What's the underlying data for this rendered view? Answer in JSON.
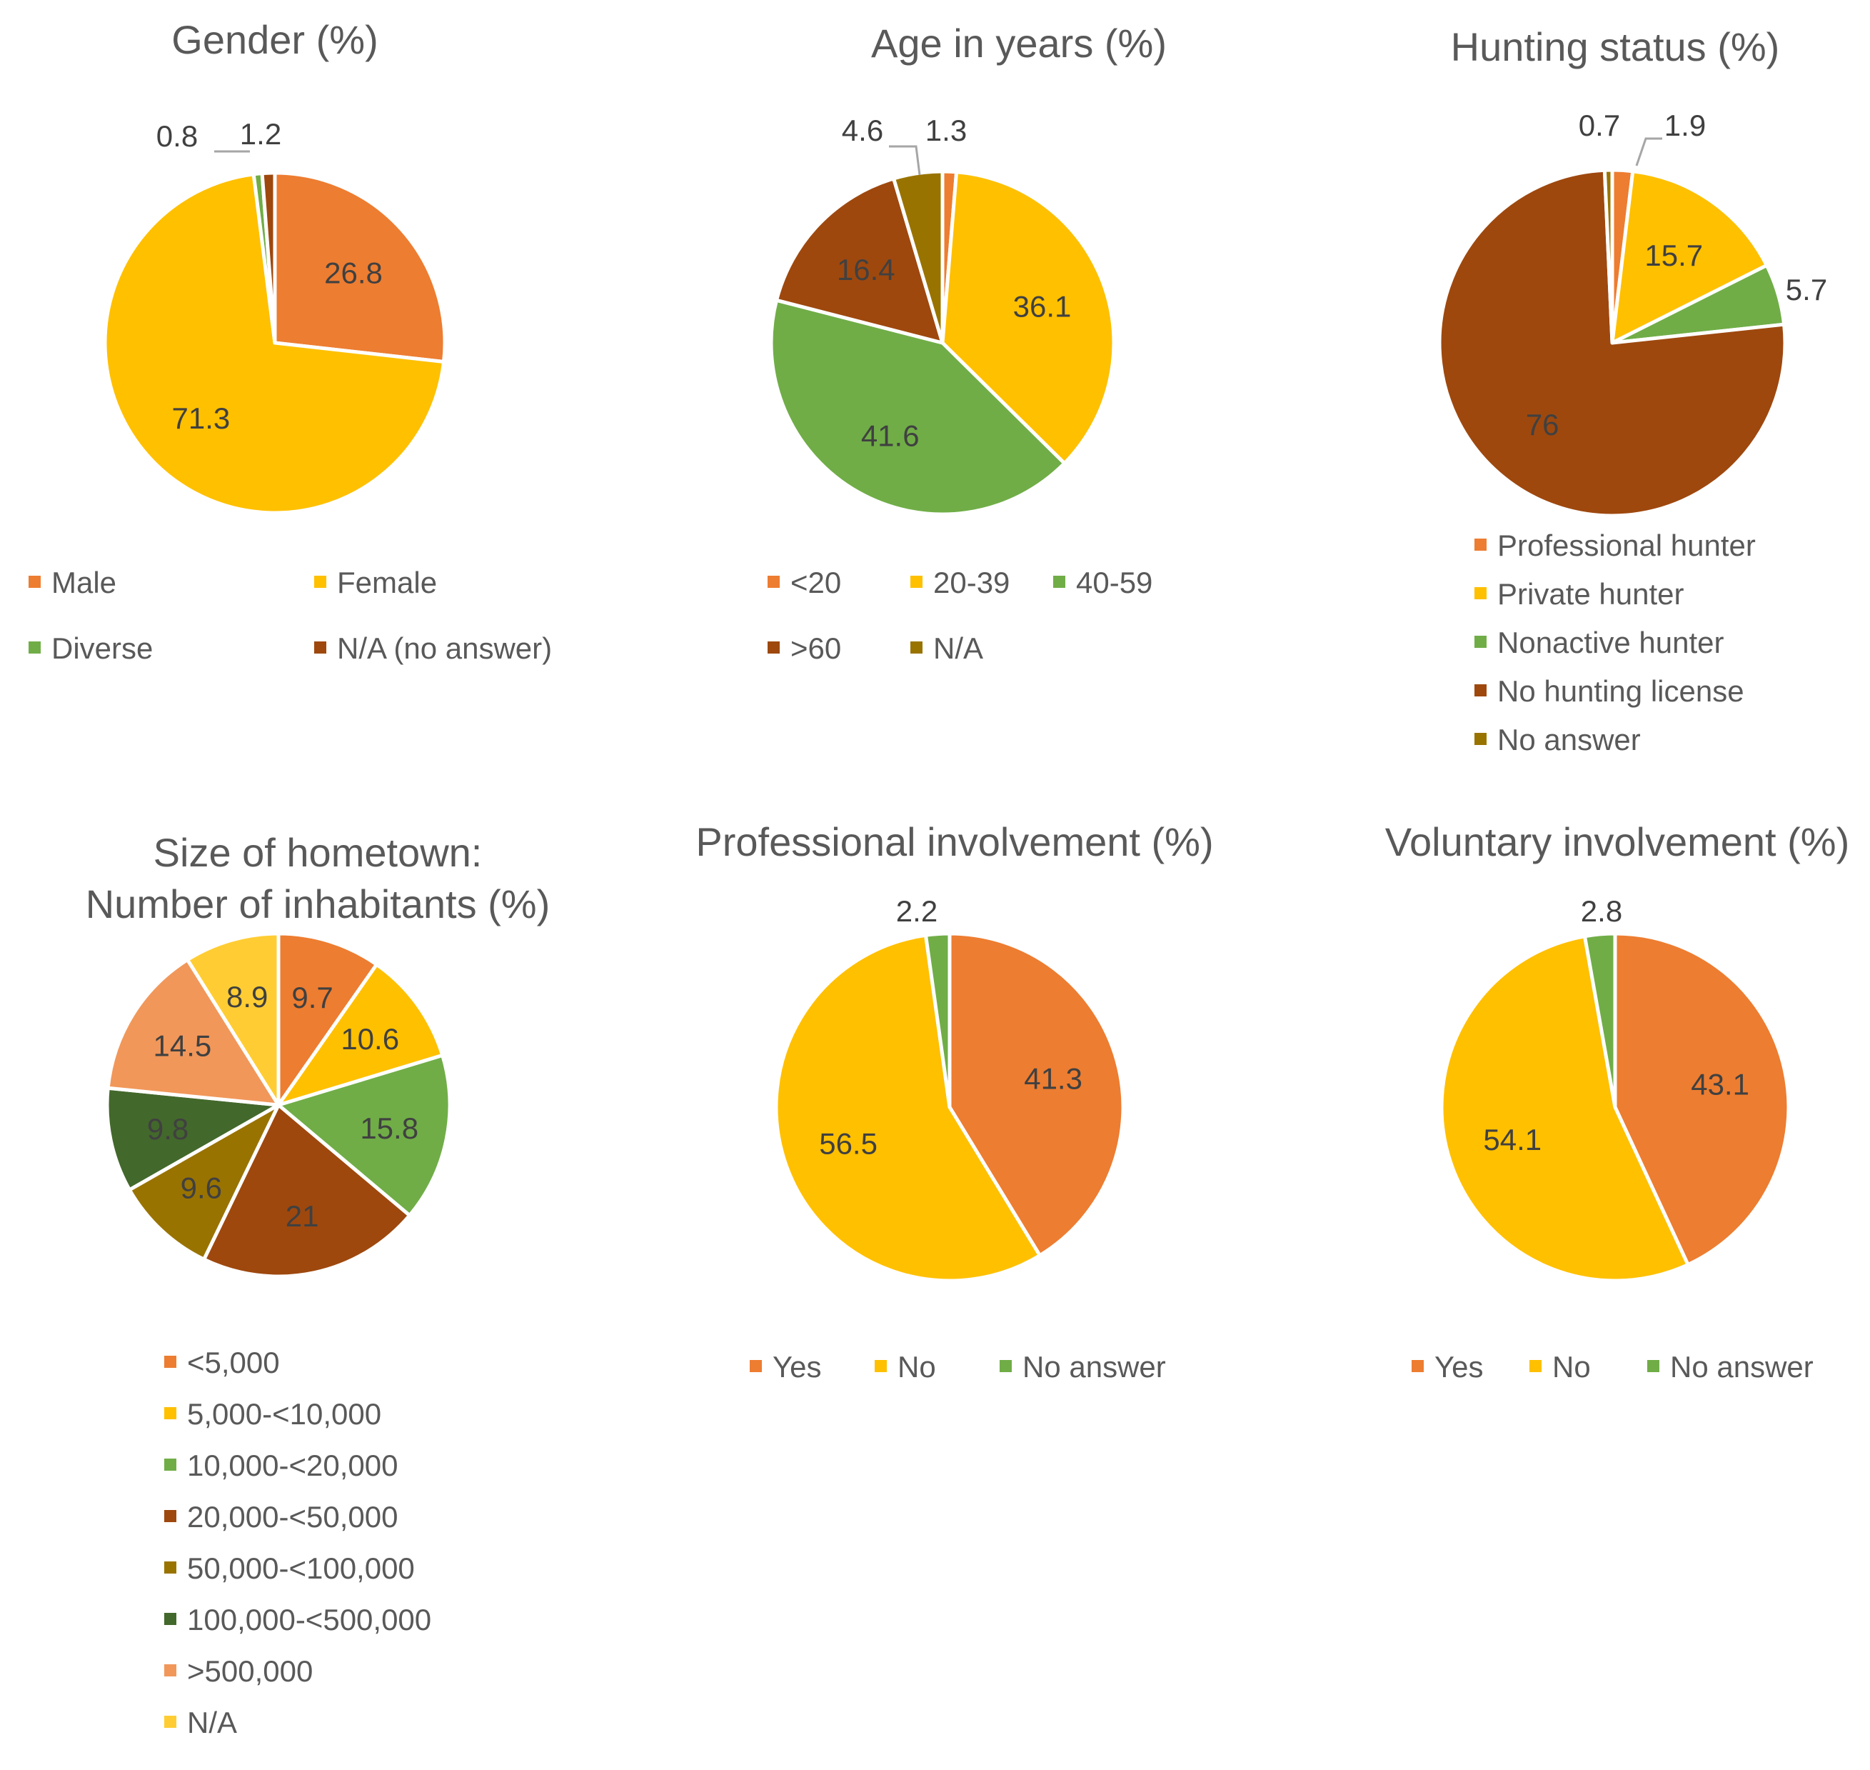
{
  "chart_data": [
    {
      "type": "pie",
      "title": "Gender (%)",
      "categories": [
        "Male",
        "Female",
        "Diverse",
        "N/A (no answer)"
      ],
      "values": [
        26.8,
        71.3,
        0.8,
        1.2
      ],
      "labels": [
        "26.8",
        "71.3",
        "0.8",
        "1.2"
      ],
      "colors": [
        "#ED7D31",
        "#FFC000",
        "#70AD47",
        "#9E480E"
      ],
      "legend": "bottom"
    },
    {
      "type": "pie",
      "title": "Age in years (%)",
      "categories": [
        "<20",
        "20-39",
        "40-59",
        ">60",
        "N/A"
      ],
      "values": [
        1.3,
        36.1,
        41.6,
        16.4,
        4.6
      ],
      "labels": [
        "1.3",
        "36.1",
        "41.6",
        "16.4",
        "4.6"
      ],
      "colors": [
        "#ED7D31",
        "#FFC000",
        "#70AD47",
        "#9E480E",
        "#997300"
      ],
      "legend": "bottom"
    },
    {
      "type": "pie",
      "title": "Hunting status (%)",
      "categories": [
        "Professional hunter",
        "Private hunter",
        "Nonactive hunter",
        "No hunting license",
        "No answer"
      ],
      "values": [
        1.9,
        15.7,
        5.7,
        76,
        0.7
      ],
      "labels": [
        "1.9",
        "15.7",
        "5.7",
        "76",
        "0.7"
      ],
      "colors": [
        "#ED7D31",
        "#FFC000",
        "#70AD47",
        "#9E480E",
        "#997300"
      ],
      "legend": "bottom"
    },
    {
      "type": "pie",
      "title": "Size of hometown: Number of inhabitants (%)",
      "title_lines": [
        "Size of hometown:",
        "Number of inhabitants (%)"
      ],
      "categories": [
        "<5,000",
        "5,000-<10,000",
        "10,000-<20,000",
        "20,000-<50,000",
        "50,000-<100,000",
        "100,000-<500,000",
        ">500,000",
        "N/A"
      ],
      "values": [
        9.7,
        10.6,
        15.8,
        21,
        9.6,
        9.8,
        14.5,
        8.9
      ],
      "labels": [
        "9.7",
        "10.6",
        "15.8",
        "21",
        "9.6",
        "9.8",
        "14.5",
        "8.9"
      ],
      "colors": [
        "#ED7D31",
        "#FFC000",
        "#70AD47",
        "#9E480E",
        "#997300",
        "#43682B",
        "#F1975A",
        "#FFCD33"
      ],
      "legend": "bottom"
    },
    {
      "type": "pie",
      "title": "Professional involvement (%)",
      "categories": [
        "Yes",
        "No",
        "No answer"
      ],
      "values": [
        41.3,
        56.5,
        2.2
      ],
      "labels": [
        "41.3",
        "56.5",
        "2.2"
      ],
      "colors": [
        "#ED7D31",
        "#FFC000",
        "#70AD47"
      ],
      "legend": "bottom"
    },
    {
      "type": "pie",
      "title": "Voluntary involvement (%)",
      "categories": [
        "Yes",
        "No",
        "No answer"
      ],
      "values": [
        43.1,
        54.1,
        2.8
      ],
      "labels": [
        "43.1",
        "54.1",
        "2.8"
      ],
      "colors": [
        "#ED7D31",
        "#FFC000",
        "#70AD47"
      ],
      "legend": "bottom"
    }
  ]
}
